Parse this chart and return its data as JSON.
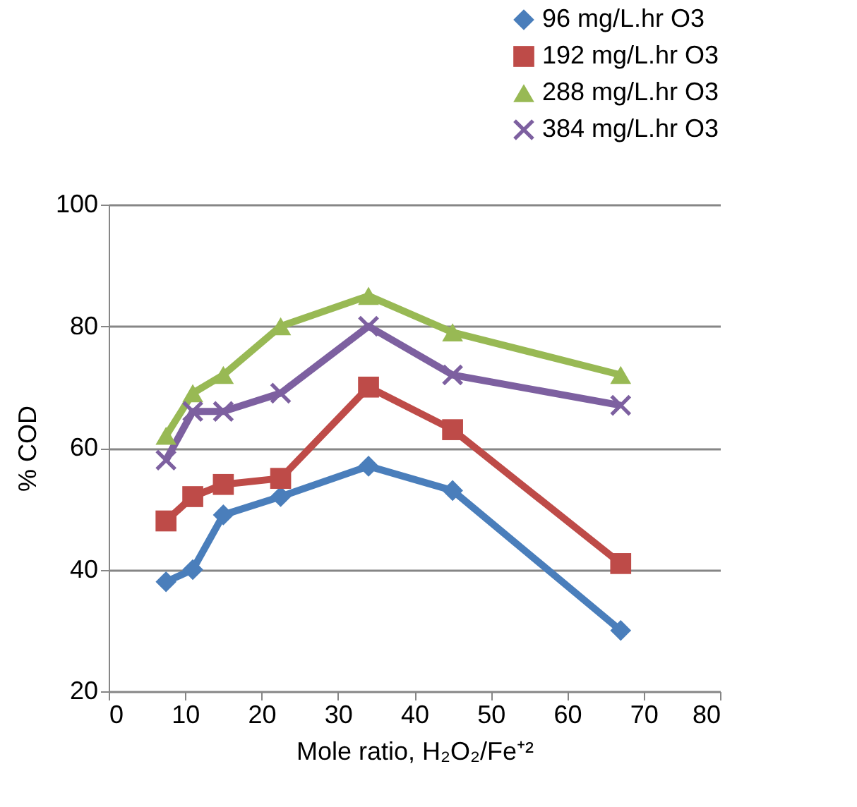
{
  "chart_data": {
    "type": "line",
    "xlabel": "Mole ratio, H₂O₂/Fe⁺²",
    "ylabel": "% COD",
    "x": [
      7.5,
      11,
      15,
      22.5,
      34,
      45,
      67
    ],
    "series": [
      {
        "name": "96 mg/L.hr O3",
        "color": "#4a7ebb",
        "marker": "diamond",
        "values": [
          38,
          40,
          49,
          52,
          57,
          53,
          30
        ]
      },
      {
        "name": "192 mg/L.hr O3",
        "color": "#be4b48",
        "marker": "square",
        "values": [
          48,
          52,
          54,
          55,
          70,
          63,
          41
        ]
      },
      {
        "name": "288 mg/L.hr O3",
        "color": "#98b954",
        "marker": "triangle",
        "values": [
          62,
          69,
          72,
          80,
          85,
          79,
          72
        ]
      },
      {
        "name": "384 mg/L.hr O3",
        "color": "#7d60a0",
        "marker": "cross",
        "values": [
          58,
          66,
          66,
          69,
          80,
          72,
          67
        ]
      }
    ],
    "xlim": [
      0,
      80
    ],
    "xticks": [
      0,
      10,
      20,
      30,
      40,
      50,
      60,
      70,
      80
    ],
    "ylim": [
      20,
      100
    ],
    "yticks": [
      20,
      40,
      60,
      80,
      100
    ],
    "grid": "y",
    "legend": "top right",
    "line_style": "solid"
  }
}
